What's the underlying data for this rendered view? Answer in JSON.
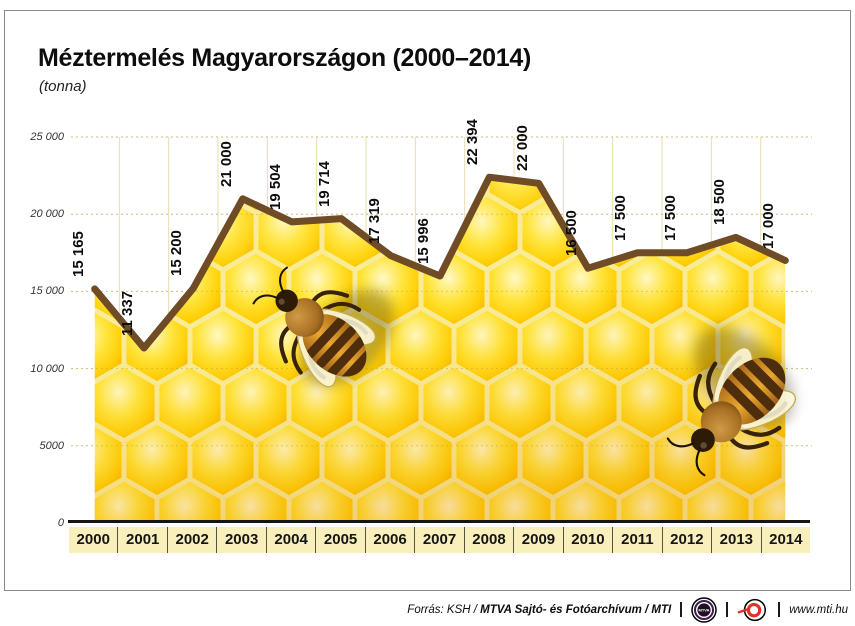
{
  "page": {
    "title": "Méztermelés Magyarországon (2000–2014)",
    "subtitle": "(tonna)"
  },
  "chart_data": {
    "type": "area",
    "title": "Méztermelés Magyarországon (2000–2014)",
    "ylabel": "tonna",
    "xlabel": "",
    "categories": [
      "2000",
      "2001",
      "2002",
      "2003",
      "2004",
      "2005",
      "2006",
      "2007",
      "2008",
      "2009",
      "2010",
      "2011",
      "2012",
      "2013",
      "2014"
    ],
    "values": [
      15165,
      11337,
      15200,
      21000,
      19504,
      19714,
      17319,
      15996,
      22394,
      22000,
      16500,
      17500,
      17500,
      18500,
      17000
    ],
    "labels": [
      "15 165",
      "11 337",
      "15 200",
      "21 000",
      "19 504",
      "19 714",
      "17 319",
      "15 996",
      "22 394",
      "22 000",
      "16 500",
      "17 500",
      "17 500",
      "18 500",
      "17 000"
    ],
    "yticks": [
      {
        "value": 25000,
        "label": "25 000"
      },
      {
        "value": 20000,
        "label": "20 000"
      },
      {
        "value": 15000,
        "label": "15 000"
      },
      {
        "value": 10000,
        "label": "10 000"
      },
      {
        "value": 5000,
        "label": "5000"
      },
      {
        "value": 0,
        "label": "0"
      }
    ],
    "ylim": [
      0,
      25000
    ],
    "grid": "horizontal dotted, vertical solid pale",
    "legend": "none",
    "line_color": "#6F4B26",
    "band_background": "#F9EFBD",
    "honey_yellow": "#FFD905",
    "decorations": [
      "honeycomb texture fill",
      "two honeybee photos"
    ]
  },
  "footer": {
    "source_prefix": "Forrás: KSH /",
    "source_bold": "MTVA Sajtó- és Fotóarchívum / MTI",
    "mtva_logo_text": "MTVA",
    "website": "www.mti.hu"
  }
}
